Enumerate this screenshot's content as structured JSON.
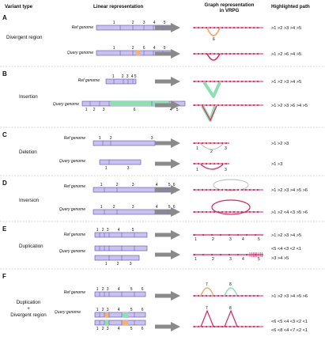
{
  "headers": {
    "variant_type": "Variant type",
    "linear": "Linear representation",
    "graph_line1": "Graph representation",
    "graph_line2": "in VRPG",
    "path": "Highlighted path"
  },
  "colors": {
    "bar_fill": "#c9c1ef",
    "bar_stroke": "#5b4fa8",
    "node": "#e0245e",
    "arrow": "#8a8a8a",
    "green": "#8ee0b4",
    "orange": "#f0b27a",
    "grey_arc": "#b8b8b8"
  },
  "genome_labels": {
    "ref": "Ref genome",
    "query": "Query genome"
  },
  "panels": [
    {
      "letter": "A",
      "type_lines": [
        "Divergent region"
      ],
      "ref_nums": [
        "1",
        "2",
        "3",
        "4",
        "5"
      ],
      "query_nums": [
        "1",
        "2",
        "6",
        "4",
        "5"
      ],
      "paths": [
        ">1 >2 >3 >4 >5",
        ">1 >2 >6 >4 >5"
      ],
      "node_labels": [
        "6"
      ]
    },
    {
      "letter": "B",
      "type_lines": [
        "Insertion"
      ],
      "ref_nums": [
        "1",
        "2",
        "3",
        "4",
        "5"
      ],
      "query_nums": [
        "1",
        "2",
        "3",
        "6",
        "4",
        "5"
      ],
      "paths": [
        ">1 >2 >3 >4 >5",
        ">1 >2 >3 >6 >4 >5"
      ],
      "node_labels": []
    },
    {
      "letter": "C",
      "type_lines": [
        "Deletion"
      ],
      "ref_nums": [
        "1",
        "2",
        "3"
      ],
      "query_nums": [
        "1",
        "3"
      ],
      "paths": [
        ">1 >2 >3",
        ">1 >3"
      ],
      "node_labels": [
        "1",
        "2",
        "3",
        "1",
        "3"
      ]
    },
    {
      "letter": "D",
      "type_lines": [
        "Inversion"
      ],
      "ref_nums": [
        "1",
        "2",
        "3",
        "4",
        "5",
        "6"
      ],
      "query_nums": [
        "1",
        "2",
        "3",
        "4",
        "5",
        "6"
      ],
      "paths": [
        ">1 >2 >3 >4 >5 >6",
        ">1 >2 <4 <3 >5 >6"
      ],
      "node_labels": []
    },
    {
      "letter": "E",
      "type_lines": [
        "Duplication"
      ],
      "ref_nums": [
        "1",
        "2",
        "3",
        "4",
        "5"
      ],
      "query_nums": [
        "1",
        "2",
        "3",
        "4",
        "5",
        "3",
        "4",
        "5"
      ],
      "paths": [
        ">1 >2 >3 >4 >5",
        "<5 <4 <3 <2 <1",
        ">3 >4 >5"
      ],
      "node_labels": [
        "1",
        "2",
        "3",
        "4",
        "5",
        "1",
        "2",
        "3",
        "4",
        "5"
      ]
    },
    {
      "letter": "F",
      "type_lines": [
        "Duplication",
        "+",
        "Divergent region"
      ],
      "ref_nums": [
        "1",
        "2",
        "3",
        "4",
        "5",
        "6"
      ],
      "query_nums": [
        "1",
        "2",
        "3",
        "4",
        "5",
        "6",
        "1",
        "7",
        "3",
        "4",
        "8",
        "6"
      ],
      "paths": [
        ">1 >2 >3 >4 >5 >6",
        "<6 <5 <4 <3 <2 <1",
        "<6 <8 <4 <7 <2 <1"
      ],
      "node_labels": [
        "7",
        "8",
        "7",
        "8"
      ]
    }
  ]
}
